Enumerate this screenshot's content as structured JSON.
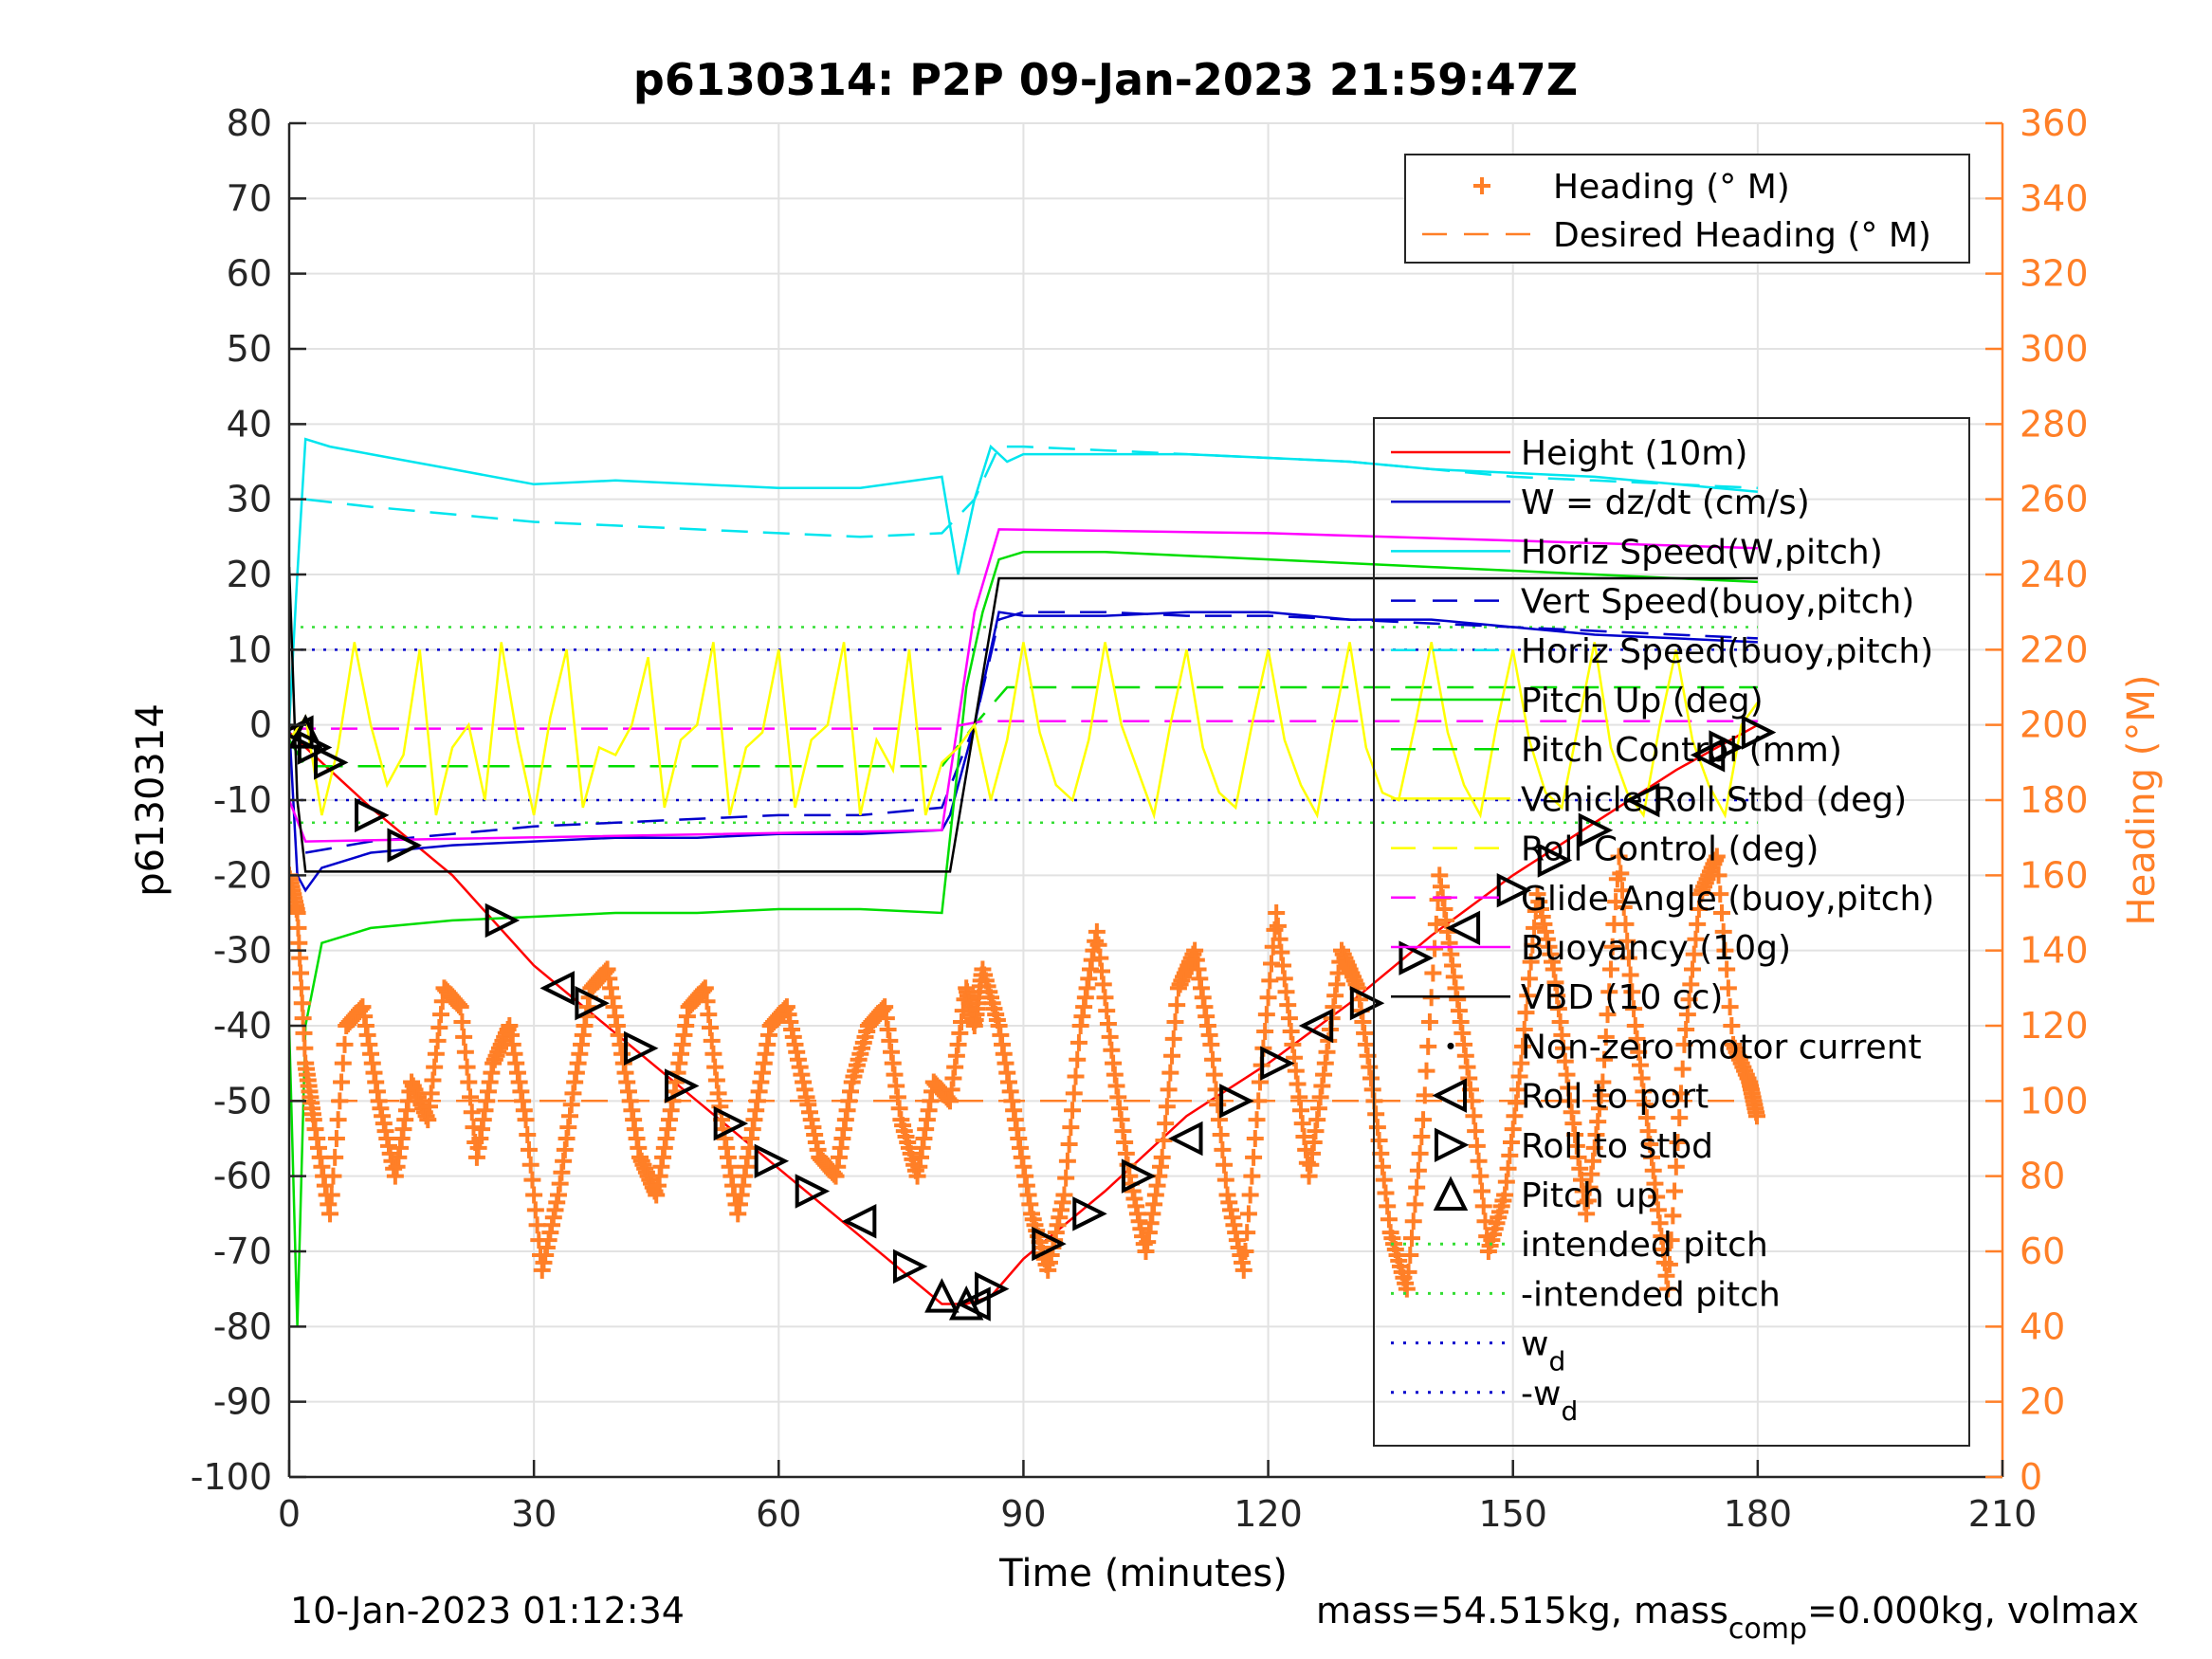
{
  "chart_data": {
    "type": "line",
    "title": "p6130314: P2P 09-Jan-2023 21:59:47Z",
    "xlabel": "Time (minutes)",
    "ylabel_left": "p6130314",
    "ylabel_right": "Heading (°M)",
    "xlim": [
      0,
      210
    ],
    "ylim_left": [
      -100,
      80
    ],
    "ylim_right": [
      0,
      360
    ],
    "x_ticks": [
      0,
      30,
      60,
      90,
      120,
      150,
      180,
      210
    ],
    "y_ticks_left": [
      80,
      70,
      60,
      50,
      40,
      30,
      20,
      10,
      0,
      -10,
      -20,
      -30,
      -40,
      -50,
      -60,
      -70,
      -80,
      -90,
      -100
    ],
    "y_ticks_right": [
      360,
      340,
      320,
      300,
      280,
      260,
      240,
      220,
      200,
      180,
      160,
      140,
      120,
      100,
      80,
      60,
      40,
      20,
      0
    ],
    "grid": true,
    "footer_left": "10-Jan-2023 01:12:34",
    "footer_right_main": "mass=54.515kg, mass",
    "footer_right_sub": "comp",
    "footer_right_tail": "=0.000kg, volmax",
    "legend_heading": [
      {
        "label": "Heading (° M)",
        "color": "#ff7f27",
        "style": "plus"
      },
      {
        "label": "Desired Heading (° M)",
        "color": "#ff7f27",
        "style": "dashed"
      }
    ],
    "legend_main": [
      {
        "label": "Height (10m)",
        "color": "#ff0000",
        "style": "solid"
      },
      {
        "label": "W = dz/dt (cm/s)",
        "color": "#0000cc",
        "style": "solid"
      },
      {
        "label": "Horiz Speed(W,pitch)",
        "color": "#00e5ee",
        "style": "solid"
      },
      {
        "label": "Vert Speed(buoy,pitch)",
        "color": "#0000cc",
        "style": "dashed"
      },
      {
        "label": "Horiz Speed(buoy,pitch)",
        "color": "#00e5ee",
        "style": "dashed"
      },
      {
        "label": "Pitch Up (deg)",
        "color": "#00dd00",
        "style": "solid"
      },
      {
        "label": "Pitch Control (mm)",
        "color": "#00dd00",
        "style": "dashed"
      },
      {
        "label": "Vehicle Roll Stbd (deg)",
        "color": "#ffff00",
        "style": "solid"
      },
      {
        "label": "Roll Control (deg)",
        "color": "#ffff00",
        "style": "dashed"
      },
      {
        "label": "Glide Angle (buoy,pitch)",
        "color": "#ff00ff",
        "style": "dashed"
      },
      {
        "label": "Buoyancy (10g)",
        "color": "#ff00ff",
        "style": "solid"
      },
      {
        "label": "VBD (10 cc)",
        "color": "#000000",
        "style": "solid"
      },
      {
        "label": "Non-zero motor current",
        "color": "#000000",
        "style": "dot"
      },
      {
        "label": "Roll to port",
        "color": "#000000",
        "style": "tri-left"
      },
      {
        "label": "Roll to stbd",
        "color": "#000000",
        "style": "tri-right"
      },
      {
        "label": "Pitch up",
        "color": "#000000",
        "style": "tri-up"
      },
      {
        "label": "intended pitch",
        "color": "#33dd33",
        "style": "dotted"
      },
      {
        "label": "-intended pitch",
        "color": "#33dd33",
        "style": "dotted"
      },
      {
        "label": "w",
        "sub": "d",
        "color": "#0000cc",
        "style": "dotted"
      },
      {
        "label": "-w",
        "sub": "d",
        "color": "#0000cc",
        "style": "dotted"
      }
    ],
    "series": [
      {
        "name": "Height (10m)",
        "axis": "left",
        "color": "#ff0000",
        "x": [
          0,
          5,
          10,
          20,
          30,
          40,
          50,
          60,
          70,
          80,
          83,
          86,
          90,
          100,
          110,
          120,
          130,
          140,
          150,
          160,
          170,
          180
        ],
        "y": [
          -1,
          -6,
          -11,
          -20,
          -32,
          -41,
          -50,
          -59,
          -68,
          -77,
          -77,
          -76,
          -71,
          -62,
          -52,
          -45,
          -37,
          -28,
          -20,
          -13,
          -6,
          0
        ]
      },
      {
        "name": "W = dz/dt (cm/s)",
        "axis": "left",
        "color": "#0000cc",
        "x": [
          0,
          1,
          2,
          4,
          10,
          20,
          30,
          40,
          50,
          60,
          70,
          80,
          81,
          84,
          87,
          90,
          100,
          110,
          120,
          130,
          140,
          150,
          160,
          170,
          180
        ],
        "y": [
          0,
          -20,
          -22,
          -19,
          -17,
          -16,
          -15.5,
          -15,
          -15,
          -14.5,
          -14.5,
          -14,
          -12,
          0,
          15,
          14.5,
          14.5,
          15,
          15,
          14,
          14,
          13,
          12,
          11.5,
          11
        ]
      },
      {
        "name": "Horiz Speed(W,pitch)",
        "axis": "left",
        "color": "#00e5ee",
        "x": [
          0,
          1,
          2,
          5,
          10,
          20,
          30,
          40,
          50,
          60,
          70,
          80,
          82,
          84,
          86,
          88,
          90,
          100,
          110,
          120,
          130,
          140,
          150,
          160,
          170,
          180
        ],
        "y": [
          0,
          20,
          38,
          37,
          36,
          34,
          32,
          32.5,
          32,
          31.5,
          31.5,
          33,
          20,
          30,
          37,
          35,
          36,
          36,
          36,
          35.5,
          35,
          34,
          33.5,
          33,
          32,
          31
        ]
      },
      {
        "name": "Vert Speed(buoy,pitch)",
        "axis": "left",
        "color": "#0000cc",
        "dashed": true,
        "x": [
          2,
          10,
          20,
          30,
          40,
          50,
          60,
          70,
          80,
          84,
          87,
          90,
          100,
          110,
          120,
          130,
          140,
          150,
          160,
          170,
          180
        ],
        "y": [
          -17,
          -15.5,
          -14.5,
          -13.5,
          -13,
          -12.5,
          -12,
          -12,
          -11,
          0,
          14,
          15,
          15,
          14.5,
          14.5,
          14,
          13.5,
          13,
          12.5,
          12,
          11.5
        ]
      },
      {
        "name": "Horiz Speed(buoy,pitch)",
        "axis": "left",
        "color": "#00e5ee",
        "dashed": true,
        "x": [
          2,
          10,
          20,
          30,
          40,
          50,
          60,
          70,
          80,
          84,
          87,
          90,
          100,
          110,
          120,
          130,
          140,
          150,
          160,
          170,
          180
        ],
        "y": [
          30,
          29,
          28,
          27,
          26.5,
          26,
          25.5,
          25,
          25.5,
          30,
          37,
          37,
          36.5,
          36,
          35.5,
          35,
          34,
          33,
          32.5,
          32,
          31.5
        ]
      },
      {
        "name": "Pitch Up (deg)",
        "axis": "left",
        "color": "#00dd00",
        "x": [
          0,
          1,
          2,
          4,
          10,
          20,
          30,
          40,
          50,
          60,
          70,
          80,
          81,
          83,
          85,
          87,
          90,
          100,
          110,
          120,
          130,
          140,
          150,
          160,
          170,
          180
        ],
        "y": [
          -40,
          -80,
          -40,
          -29,
          -27,
          -26,
          -25.5,
          -25,
          -25,
          -24.5,
          -24.5,
          -25,
          -15,
          5,
          15,
          22,
          23,
          23,
          22.5,
          22,
          21.5,
          21,
          20.5,
          20,
          19.5,
          19
        ]
      },
      {
        "name": "Pitch Control (mm)",
        "axis": "left",
        "color": "#00dd00",
        "dashed": true,
        "x": [
          0,
          2,
          80,
          84,
          88,
          180
        ],
        "y": [
          -2,
          -5.5,
          -5.5,
          0,
          5,
          5
        ]
      },
      {
        "name": "Buoyancy (10g)",
        "axis": "left",
        "color": "#ff00ff",
        "x": [
          0,
          2,
          80,
          84,
          87,
          120,
          150,
          180
        ],
        "y": [
          -10,
          -15.5,
          -14,
          15,
          26,
          25.5,
          24.5,
          23.5
        ]
      },
      {
        "name": "Glide Angle (buoy,pitch)",
        "axis": "left",
        "color": "#ff00ff",
        "dashed": true,
        "x": [
          0,
          80,
          85,
          180
        ],
        "y": [
          -0.5,
          -0.5,
          0.5,
          0.5
        ]
      },
      {
        "name": "VBD (10 cc)",
        "axis": "left",
        "color": "#000000",
        "x": [
          0,
          1,
          2,
          80,
          81,
          87,
          88,
          180
        ],
        "y": [
          21,
          -10,
          -19.5,
          -19.5,
          -19.5,
          19.5,
          19.5,
          19.5
        ]
      },
      {
        "name": "Vehicle Roll Stbd (deg)",
        "axis": "left",
        "color": "#ffff00",
        "x": [
          0,
          2,
          4,
          6,
          8,
          10,
          12,
          14,
          16,
          18,
          20,
          22,
          24,
          26,
          28,
          30,
          32,
          34,
          36,
          38,
          40,
          42,
          44,
          46,
          48,
          50,
          52,
          54,
          56,
          58,
          60,
          62,
          64,
          66,
          68,
          70,
          72,
          74,
          76,
          78,
          80,
          82,
          84,
          86,
          88,
          90,
          92,
          94,
          96,
          98,
          100,
          102,
          104,
          106,
          108,
          110,
          112,
          114,
          116,
          118,
          120,
          122,
          124,
          126,
          128,
          130,
          132,
          134,
          136,
          138,
          140,
          142,
          144,
          146,
          148,
          150,
          152,
          154,
          156,
          158,
          160,
          162,
          164,
          166,
          168,
          170,
          172,
          174,
          176,
          178,
          180
        ],
        "y": [
          -2,
          1,
          -12,
          -3,
          11,
          0,
          -8,
          -4,
          10,
          -12,
          -3,
          0,
          -10,
          11,
          -2,
          -12,
          1,
          10,
          -11,
          -3,
          -4,
          0,
          9,
          -11,
          -2,
          0,
          11,
          -12,
          -3,
          -1,
          10,
          -11,
          -2,
          0,
          11,
          -12,
          -2,
          -6,
          10,
          -12,
          -5,
          -3,
          0,
          -10,
          -2,
          11,
          -1,
          -8,
          -10,
          -2,
          11,
          0,
          -6,
          -12,
          0,
          10,
          -3,
          -9,
          -11,
          0,
          10,
          -2,
          -8,
          -12,
          0,
          11,
          -3,
          -9,
          -10,
          0,
          11,
          -1,
          -8,
          -12,
          0,
          10,
          -2,
          -9,
          -11,
          0,
          11,
          -3,
          -9,
          -12,
          0,
          10,
          -2,
          -8,
          -12,
          0,
          3
        ]
      },
      {
        "name": "Heading (° M)",
        "axis": "right",
        "color": "#ff7f27",
        "marker": "plus",
        "x": [
          0,
          1,
          2,
          3,
          5,
          7,
          9,
          11,
          13,
          15,
          17,
          19,
          21,
          23,
          25,
          27,
          29,
          31,
          33,
          35,
          37,
          39,
          41,
          43,
          45,
          47,
          49,
          51,
          53,
          55,
          57,
          59,
          61,
          63,
          65,
          67,
          69,
          71,
          73,
          75,
          77,
          79,
          81,
          83,
          84,
          85,
          87,
          89,
          91,
          93,
          95,
          97,
          99,
          101,
          103,
          105,
          107,
          109,
          111,
          113,
          115,
          117,
          119,
          121,
          123,
          125,
          127,
          129,
          131,
          133,
          135,
          137,
          139,
          141,
          143,
          145,
          147,
          149,
          151,
          153,
          155,
          157,
          159,
          161,
          163,
          165,
          167,
          169,
          171,
          173,
          175,
          177,
          179,
          180
        ],
        "y": [
          160,
          150,
          110,
          95,
          70,
          120,
          125,
          100,
          80,
          105,
          95,
          130,
          125,
          85,
          110,
          120,
          95,
          55,
          75,
          105,
          130,
          135,
          110,
          85,
          75,
          100,
          125,
          130,
          95,
          70,
          95,
          120,
          125,
          105,
          85,
          80,
          105,
          120,
          125,
          95,
          80,
          105,
          100,
          130,
          120,
          135,
          120,
          95,
          70,
          55,
          75,
          120,
          145,
          110,
          80,
          60,
          85,
          130,
          140,
          115,
          75,
          55,
          105,
          150,
          115,
          80,
          110,
          140,
          130,
          100,
          65,
          50,
          95,
          160,
          130,
          100,
          60,
          75,
          110,
          155,
          135,
          100,
          70,
          105,
          165,
          120,
          85,
          50,
          115,
          155,
          165,
          115,
          105,
          95
        ]
      },
      {
        "name": "Desired Heading (° M)",
        "axis": "right",
        "color": "#ff7f27",
        "dashed": true,
        "x": [
          0,
          180
        ],
        "y": [
          100,
          100
        ]
      }
    ],
    "reference_lines": [
      {
        "name": "intended pitch",
        "y": 13,
        "color": "#33dd33"
      },
      {
        "name": "-intended pitch",
        "y": -13,
        "color": "#33dd33"
      },
      {
        "name": "w_d",
        "y": 10,
        "color": "#0000cc"
      },
      {
        "name": "-w_d",
        "y": -10,
        "color": "#0000cc"
      }
    ],
    "markers": {
      "roll_to_port": [
        [
          1,
          -1
        ],
        [
          33,
          -35
        ],
        [
          70,
          -66
        ],
        [
          84,
          -77
        ],
        [
          110,
          -55
        ],
        [
          126,
          -40
        ],
        [
          144,
          -27
        ],
        [
          166,
          -10
        ],
        [
          174,
          -4
        ]
      ],
      "roll_to_stbd": [
        [
          3,
          -3
        ],
        [
          5,
          -5
        ],
        [
          10,
          -12
        ],
        [
          14,
          -16
        ],
        [
          26,
          -26
        ],
        [
          37,
          -37
        ],
        [
          43,
          -43
        ],
        [
          48,
          -48
        ],
        [
          54,
          -53
        ],
        [
          59,
          -58
        ],
        [
          64,
          -62
        ],
        [
          76,
          -72
        ],
        [
          86,
          -75
        ],
        [
          93,
          -69
        ],
        [
          98,
          -65
        ],
        [
          104,
          -60
        ],
        [
          116,
          -50
        ],
        [
          121,
          -45
        ],
        [
          132,
          -37
        ],
        [
          138,
          -31
        ],
        [
          150,
          -22
        ],
        [
          155,
          -18
        ],
        [
          160,
          -14
        ],
        [
          176,
          -3
        ],
        [
          180,
          -1
        ]
      ],
      "pitch_up": [
        [
          2,
          -1
        ],
        [
          80,
          -76
        ],
        [
          83,
          -77
        ]
      ]
    }
  }
}
